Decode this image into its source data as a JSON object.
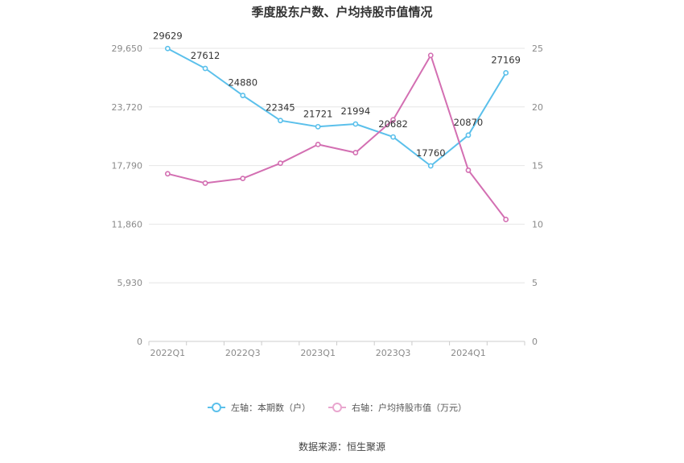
{
  "chart_data": {
    "type": "line",
    "title": "季度股东户数、户均持股市值情况",
    "categories": [
      "2022Q1",
      "2022Q2",
      "2022Q3",
      "2022Q4",
      "2023Q1",
      "2023Q2",
      "2023Q3",
      "2023Q4",
      "2024Q1",
      "2024Q2"
    ],
    "x_tick_labels": [
      "2022Q1",
      "2022Q3",
      "2023Q1",
      "2023Q3",
      "2024Q1"
    ],
    "left_axis": {
      "ylim": [
        0,
        29650
      ],
      "ticks": [
        0,
        5930,
        11860,
        17790,
        23720,
        29650
      ],
      "tick_labels": [
        "0",
        "5,930",
        "11,860",
        "17,790",
        "23,720",
        "29,650"
      ]
    },
    "right_axis": {
      "ylim": [
        0,
        25
      ],
      "ticks": [
        0,
        5,
        10,
        15,
        20,
        25
      ],
      "tick_labels": [
        "0",
        "5",
        "10",
        "15",
        "20",
        "25"
      ]
    },
    "series": [
      {
        "name": "左轴：本期数（户）",
        "axis": "left",
        "color": "#5bc0eb",
        "values": [
          29629,
          27612,
          24880,
          22345,
          21721,
          21994,
          20682,
          17760,
          20870,
          27169
        ],
        "labels": [
          "29629",
          "27612",
          "24880",
          "22345",
          "21721",
          "21994",
          "20682",
          "17760",
          "20870",
          "27169"
        ]
      },
      {
        "name": "右轴：户均持股市值（万元）",
        "axis": "right",
        "color": "#d36fb2",
        "values": [
          14.3,
          13.5,
          13.9,
          15.2,
          16.8,
          16.1,
          18.9,
          24.4,
          14.6,
          10.4
        ]
      }
    ],
    "grid": true,
    "legend_position": "bottom"
  },
  "source": "数据来源：恒生聚源"
}
